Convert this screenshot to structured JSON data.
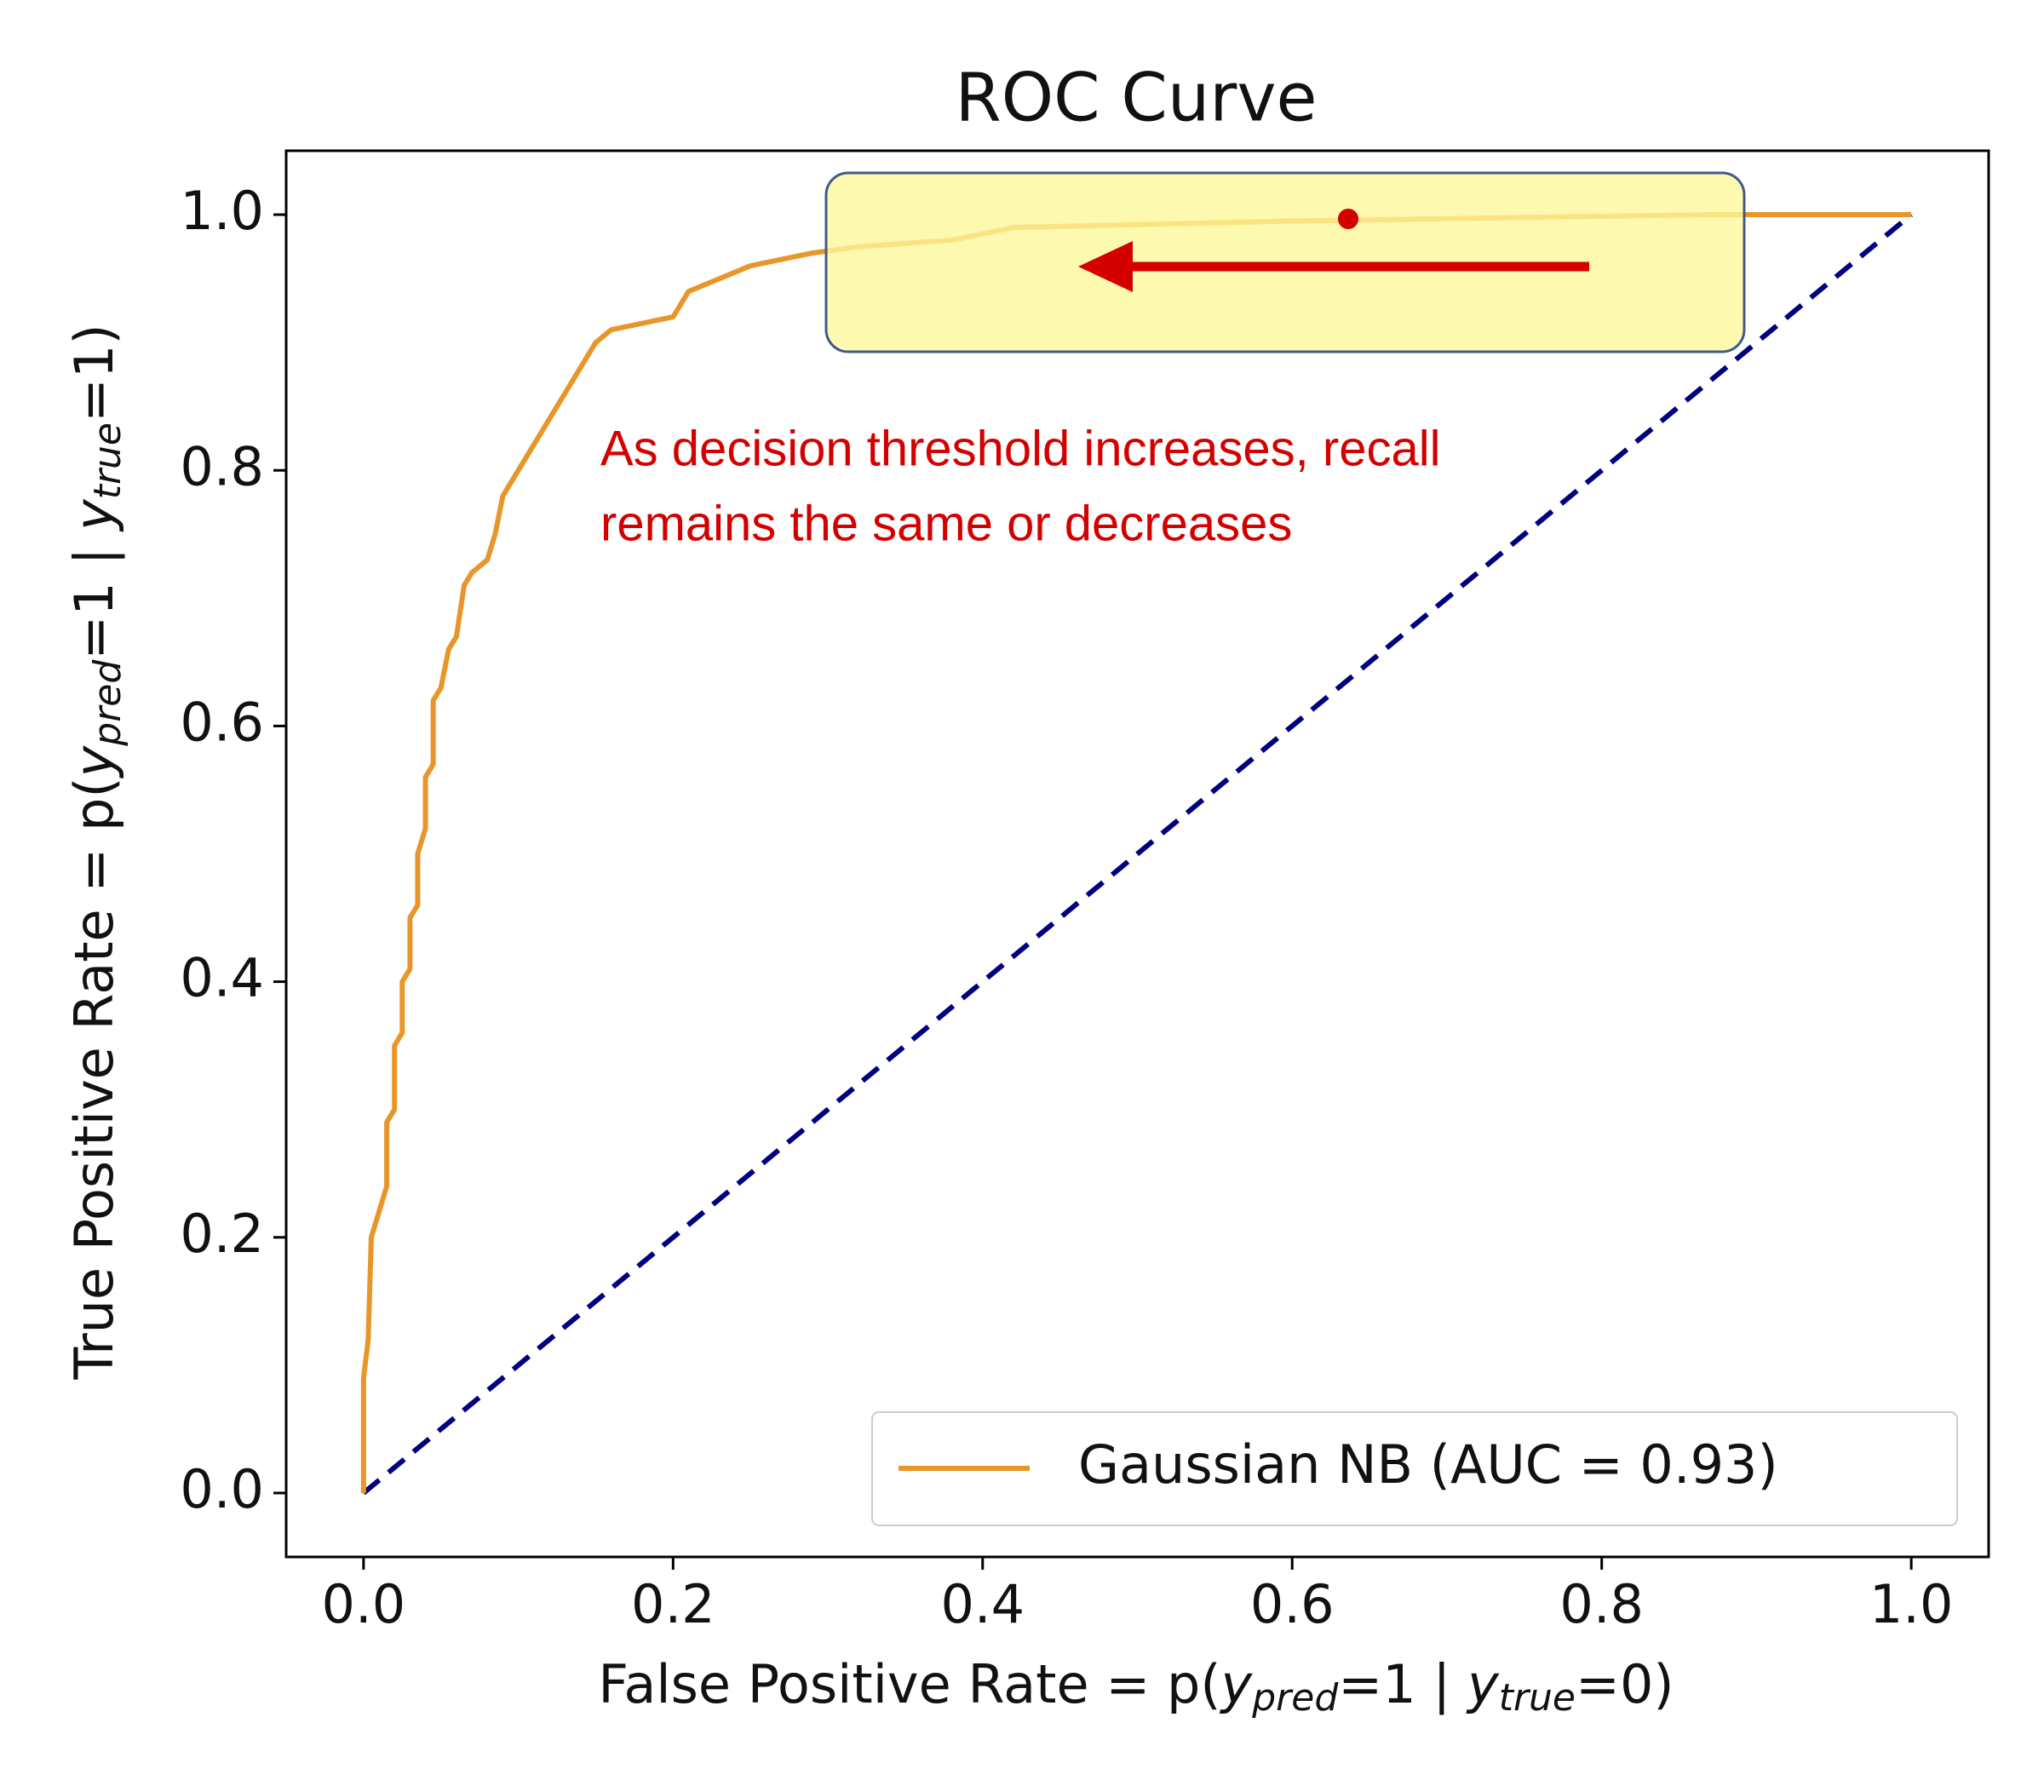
{
  "chart_data": {
    "type": "line",
    "title": "ROC Curve",
    "x_label": [
      "False Positive Rate = p(",
      "y",
      "pred",
      "=1 | ",
      "y",
      "true",
      "=0)"
    ],
    "y_label": [
      "True Positive Rate = p(",
      "y",
      "pred",
      "=1 | ",
      "y",
      "true",
      "=1)"
    ],
    "annotation": [
      "As decision threshold increases, recall",
      "remains the same or decreases"
    ],
    "xlim": [
      -0.05,
      1.05
    ],
    "ylim": [
      -0.05,
      1.05
    ],
    "xticks": [
      {
        "value": 0,
        "label": "0.0"
      },
      {
        "value": 0.2,
        "label": "0.2"
      },
      {
        "value": 0.4,
        "label": "0.4"
      },
      {
        "value": 0.6,
        "label": "0.6"
      },
      {
        "value": 0.8,
        "label": "0.8"
      },
      {
        "value": 1,
        "label": "1.0"
      }
    ],
    "yticks": [
      {
        "value": 0,
        "label": "0.0"
      },
      {
        "value": 0.2,
        "label": "0.2"
      },
      {
        "value": 0.4,
        "label": "0.4"
      },
      {
        "value": 0.6,
        "label": "0.6"
      },
      {
        "value": 0.8,
        "label": "0.8"
      },
      {
        "value": 1,
        "label": "1.0"
      }
    ],
    "grid": false,
    "legend": "lower right",
    "series": [
      {
        "name": "Gaussian NB (AUC = 0.93)",
        "color": "#e8962a",
        "x": [
          0,
          0,
          0.003,
          0.005,
          0.01,
          0.015,
          0.015,
          0.02,
          0.02,
          0.025,
          0.025,
          0.03,
          0.03,
          0.035,
          0.035,
          0.04,
          0.04,
          0.045,
          0.045,
          0.05,
          0.055,
          0.06,
          0.065,
          0.07,
          0.08,
          0.085,
          0.09,
          0.1,
          0.11,
          0.12,
          0.13,
          0.14,
          0.15,
          0.16,
          0.2,
          0.21,
          0.25,
          0.29,
          0.32,
          0.38,
          0.42,
          0.6,
          0.87,
          1
        ],
        "values": [
          0,
          0.09,
          0.12,
          0.2,
          0.22,
          0.24,
          0.29,
          0.3,
          0.35,
          0.36,
          0.4,
          0.41,
          0.45,
          0.46,
          0.5,
          0.52,
          0.56,
          0.57,
          0.62,
          0.63,
          0.66,
          0.67,
          0.71,
          0.72,
          0.73,
          0.75,
          0.78,
          0.8,
          0.82,
          0.84,
          0.86,
          0.88,
          0.9,
          0.91,
          0.92,
          0.94,
          0.96,
          0.97,
          0.975,
          0.98,
          0.99,
          0.995,
          1,
          1
        ]
      }
    ],
    "reference_line": {
      "color": "#000080",
      "x": [
        0,
        1
      ],
      "values": [
        0,
        1
      ]
    }
  }
}
